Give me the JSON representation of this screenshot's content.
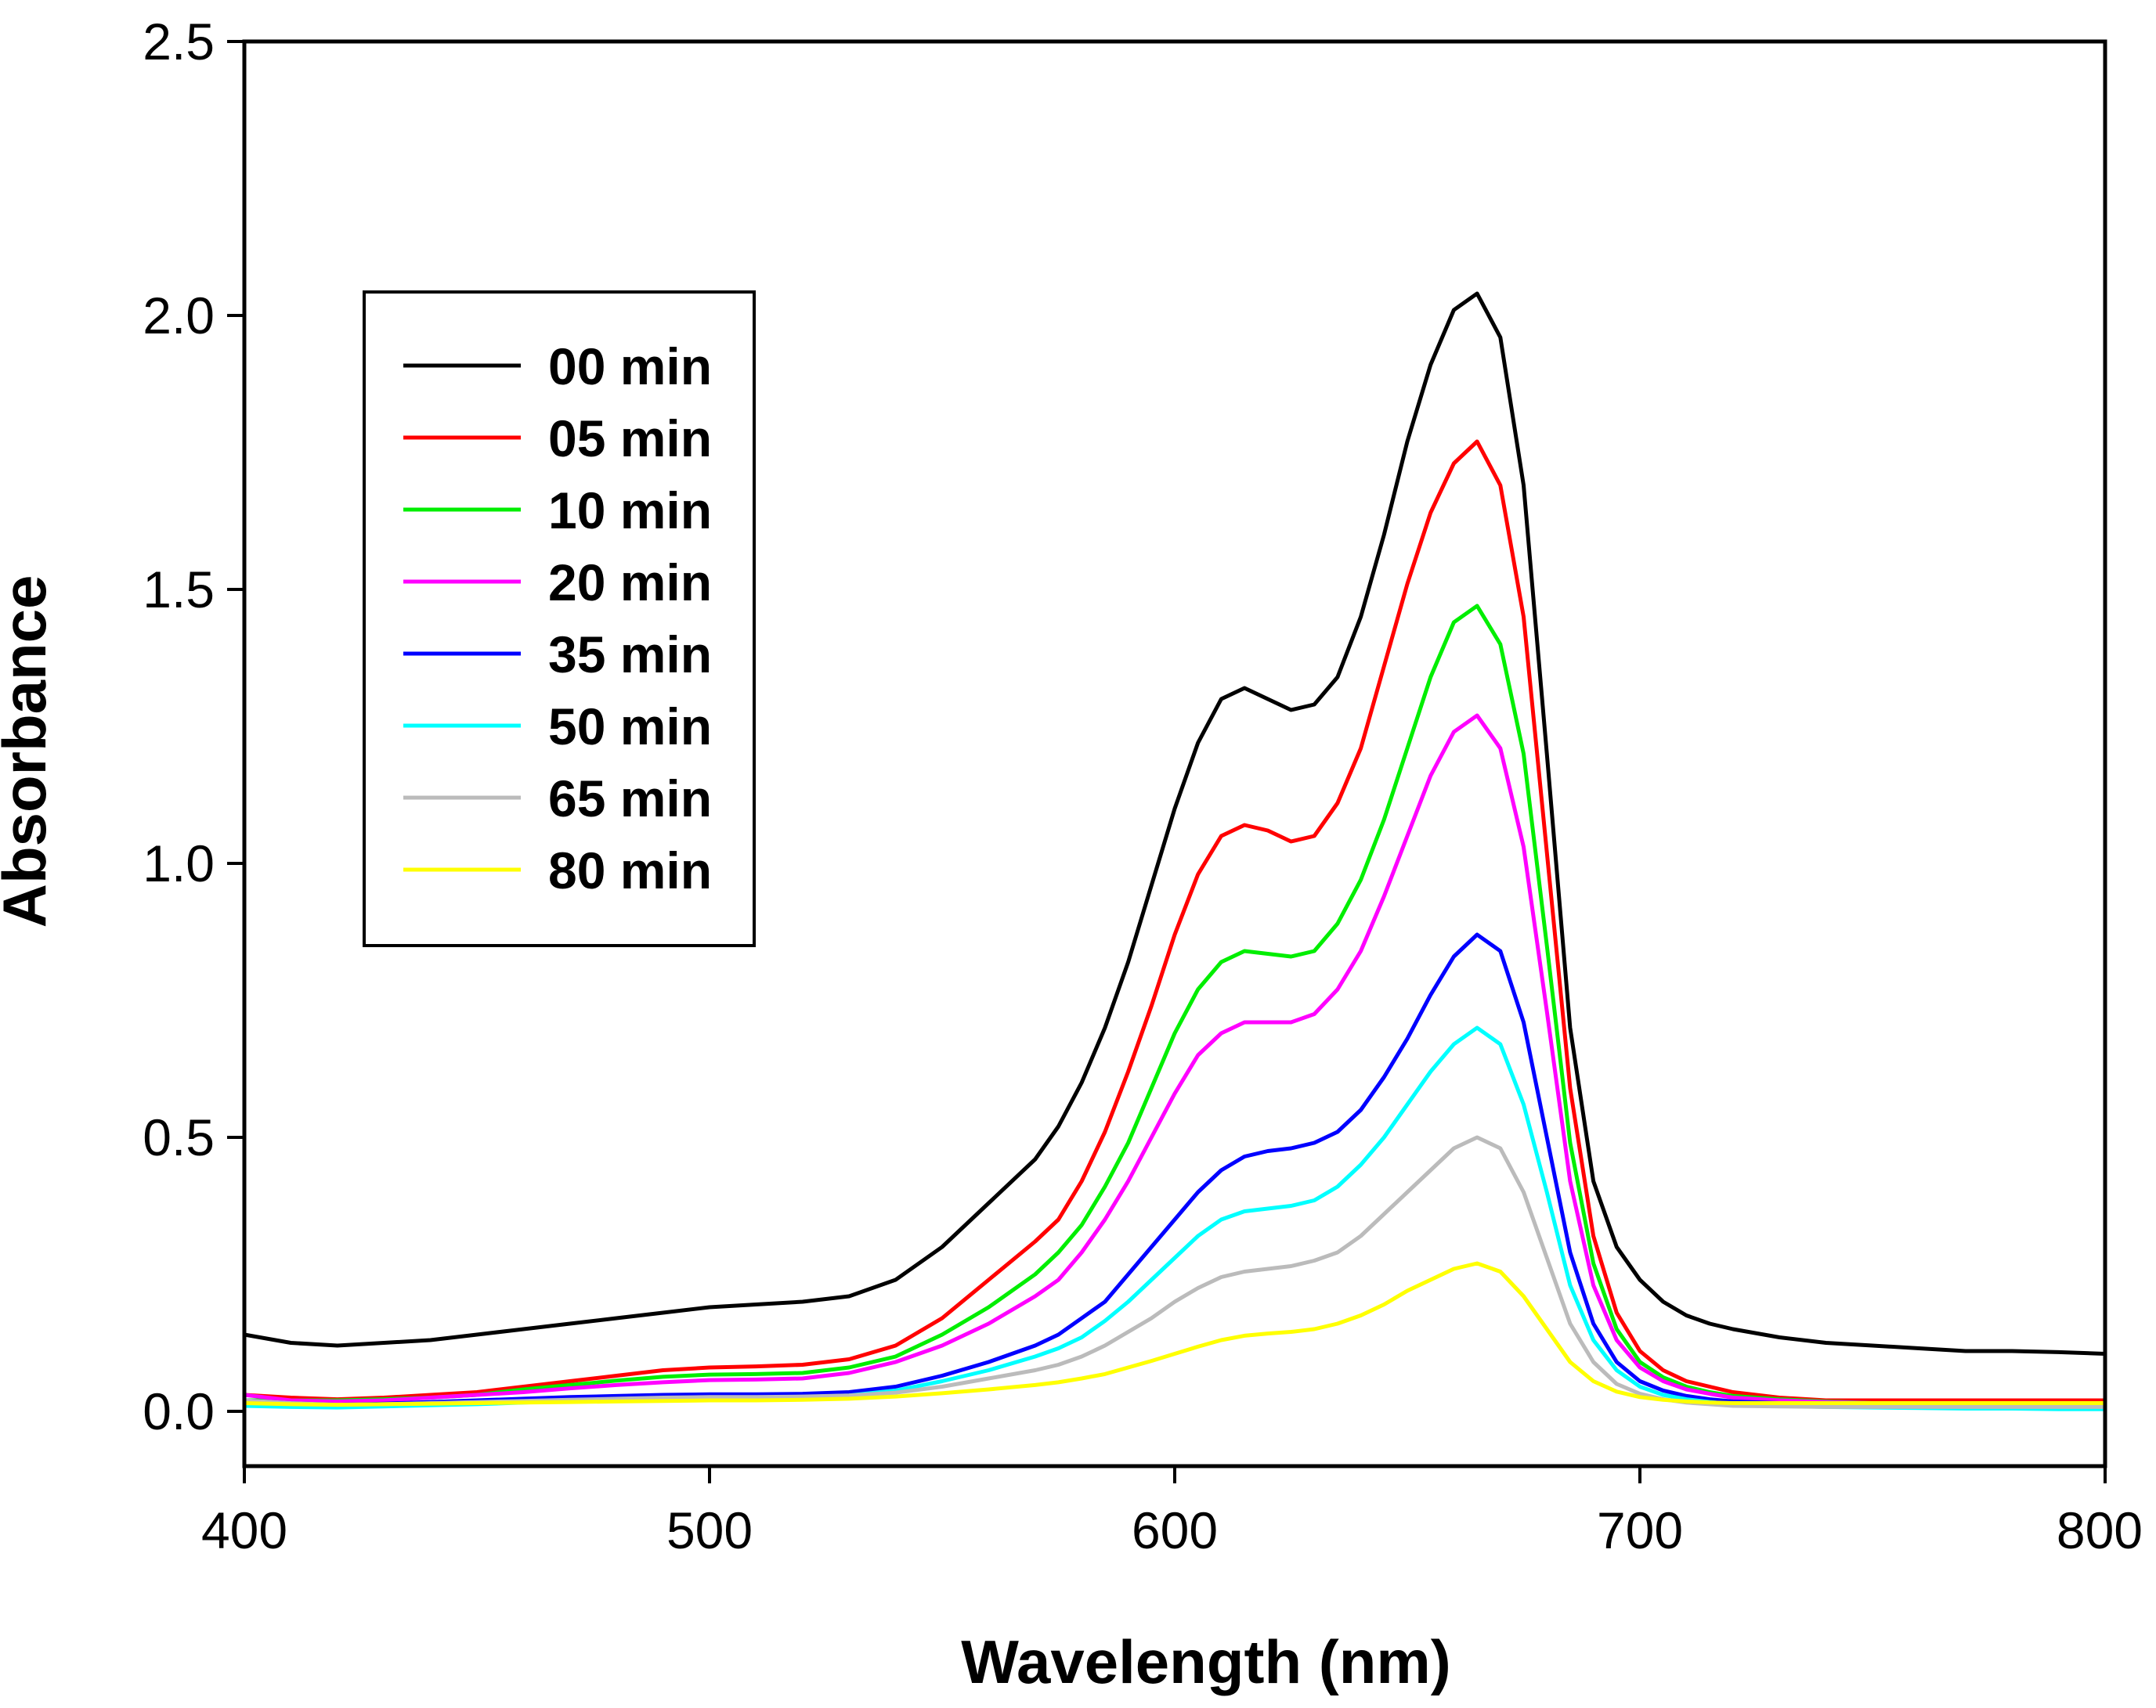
{
  "chart_data": {
    "type": "line",
    "title": "",
    "xlabel": "Wavelength (nm)",
    "ylabel": "Absorbance",
    "xlim": [
      400,
      800
    ],
    "ylim": [
      -0.1,
      2.5
    ],
    "xticks": [
      400,
      500,
      600,
      700,
      800
    ],
    "xtick_labels": [
      "400",
      "500",
      "600",
      "700",
      "800"
    ],
    "yticks": [
      0.0,
      0.5,
      1.0,
      1.5,
      2.0,
      2.5
    ],
    "ytick_labels": [
      "0.0",
      "0.5",
      "1.0",
      "1.5",
      "2.0",
      "2.5"
    ],
    "grid": false,
    "legend_position": "upper-left",
    "x": [
      400,
      410,
      420,
      430,
      440,
      450,
      460,
      470,
      480,
      490,
      500,
      510,
      520,
      530,
      540,
      550,
      560,
      570,
      575,
      580,
      585,
      590,
      595,
      600,
      605,
      610,
      615,
      620,
      625,
      630,
      635,
      640,
      645,
      650,
      655,
      660,
      665,
      670,
      675,
      680,
      685,
      690,
      695,
      700,
      705,
      710,
      715,
      720,
      730,
      740,
      750,
      760,
      770,
      780,
      790,
      800
    ],
    "series": [
      {
        "name": "00 min",
        "color": "#000000",
        "values": [
          0.14,
          0.125,
          0.12,
          0.125,
          0.13,
          0.14,
          0.15,
          0.16,
          0.17,
          0.18,
          0.19,
          0.195,
          0.2,
          0.21,
          0.24,
          0.3,
          0.38,
          0.46,
          0.52,
          0.6,
          0.7,
          0.82,
          0.96,
          1.1,
          1.22,
          1.3,
          1.32,
          1.3,
          1.28,
          1.29,
          1.34,
          1.45,
          1.6,
          1.77,
          1.91,
          2.01,
          2.04,
          1.96,
          1.69,
          1.2,
          0.7,
          0.42,
          0.3,
          0.24,
          0.2,
          0.175,
          0.16,
          0.15,
          0.135,
          0.125,
          0.12,
          0.115,
          0.11,
          0.11,
          0.108,
          0.105
        ]
      },
      {
        "name": "05 min",
        "color": "#ff0000",
        "values": [
          0.03,
          0.025,
          0.022,
          0.025,
          0.03,
          0.035,
          0.045,
          0.055,
          0.065,
          0.075,
          0.08,
          0.082,
          0.085,
          0.095,
          0.12,
          0.17,
          0.24,
          0.31,
          0.35,
          0.42,
          0.51,
          0.62,
          0.74,
          0.87,
          0.98,
          1.05,
          1.07,
          1.06,
          1.04,
          1.05,
          1.11,
          1.21,
          1.36,
          1.51,
          1.64,
          1.73,
          1.77,
          1.69,
          1.45,
          1.02,
          0.59,
          0.32,
          0.18,
          0.11,
          0.075,
          0.055,
          0.045,
          0.035,
          0.025,
          0.02,
          0.02,
          0.02,
          0.02,
          0.02,
          0.02,
          0.02
        ]
      },
      {
        "name": "10 min",
        "color": "#00ee00",
        "values": [
          0.02,
          0.02,
          0.02,
          0.022,
          0.025,
          0.03,
          0.04,
          0.048,
          0.056,
          0.063,
          0.067,
          0.068,
          0.07,
          0.08,
          0.1,
          0.14,
          0.19,
          0.25,
          0.29,
          0.34,
          0.41,
          0.49,
          0.59,
          0.69,
          0.77,
          0.82,
          0.84,
          0.835,
          0.83,
          0.84,
          0.89,
          0.97,
          1.08,
          1.21,
          1.34,
          1.44,
          1.47,
          1.4,
          1.2,
          0.85,
          0.49,
          0.27,
          0.15,
          0.09,
          0.062,
          0.045,
          0.035,
          0.028,
          0.022,
          0.018,
          0.015,
          0.015,
          0.015,
          0.015,
          0.015,
          0.015
        ]
      },
      {
        "name": "20 min",
        "color": "#ff00ff",
        "values": [
          0.03,
          0.02,
          0.018,
          0.02,
          0.025,
          0.03,
          0.035,
          0.042,
          0.048,
          0.053,
          0.057,
          0.058,
          0.06,
          0.07,
          0.09,
          0.12,
          0.16,
          0.21,
          0.24,
          0.29,
          0.35,
          0.42,
          0.5,
          0.58,
          0.65,
          0.69,
          0.71,
          0.71,
          0.71,
          0.725,
          0.77,
          0.84,
          0.94,
          1.05,
          1.16,
          1.24,
          1.27,
          1.21,
          1.03,
          0.73,
          0.42,
          0.23,
          0.13,
          0.08,
          0.055,
          0.04,
          0.032,
          0.025,
          0.02,
          0.017,
          0.015,
          0.015,
          0.015,
          0.015,
          0.015,
          0.015
        ]
      },
      {
        "name": "35 min",
        "color": "#0000ff",
        "values": [
          0.02,
          0.015,
          0.012,
          0.014,
          0.017,
          0.02,
          0.023,
          0.026,
          0.028,
          0.03,
          0.031,
          0.031,
          0.032,
          0.035,
          0.045,
          0.065,
          0.09,
          0.12,
          0.14,
          0.17,
          0.2,
          0.25,
          0.3,
          0.35,
          0.4,
          0.44,
          0.465,
          0.475,
          0.48,
          0.49,
          0.51,
          0.55,
          0.61,
          0.68,
          0.76,
          0.83,
          0.87,
          0.84,
          0.71,
          0.5,
          0.29,
          0.16,
          0.09,
          0.055,
          0.038,
          0.028,
          0.022,
          0.018,
          0.015,
          0.012,
          0.01,
          0.01,
          0.01,
          0.01,
          0.01,
          0.01
        ]
      },
      {
        "name": "50 min",
        "color": "#00ffff",
        "values": [
          0.01,
          0.008,
          0.007,
          0.009,
          0.011,
          0.013,
          0.016,
          0.019,
          0.021,
          0.023,
          0.024,
          0.025,
          0.026,
          0.029,
          0.038,
          0.055,
          0.075,
          0.1,
          0.115,
          0.135,
          0.165,
          0.2,
          0.24,
          0.28,
          0.32,
          0.35,
          0.365,
          0.37,
          0.375,
          0.385,
          0.41,
          0.45,
          0.5,
          0.56,
          0.62,
          0.67,
          0.7,
          0.67,
          0.56,
          0.4,
          0.23,
          0.13,
          0.075,
          0.045,
          0.03,
          0.022,
          0.017,
          0.013,
          0.01,
          0.008,
          0.007,
          0.006,
          0.005,
          0.005,
          0.004,
          0.004
        ]
      },
      {
        "name": "65 min",
        "color": "#bbbbbb",
        "values": [
          0.02,
          0.015,
          0.012,
          0.013,
          0.015,
          0.017,
          0.019,
          0.021,
          0.023,
          0.025,
          0.026,
          0.026,
          0.027,
          0.029,
          0.034,
          0.045,
          0.06,
          0.075,
          0.085,
          0.1,
          0.12,
          0.145,
          0.17,
          0.2,
          0.225,
          0.245,
          0.255,
          0.26,
          0.265,
          0.275,
          0.29,
          0.32,
          0.36,
          0.4,
          0.44,
          0.48,
          0.5,
          0.48,
          0.4,
          0.28,
          0.16,
          0.09,
          0.05,
          0.032,
          0.022,
          0.016,
          0.013,
          0.01,
          0.009,
          0.008,
          0.008,
          0.008,
          0.008,
          0.008,
          0.008,
          0.008
        ]
      },
      {
        "name": "80 min",
        "color": "#ffff00",
        "values": [
          0.015,
          0.013,
          0.012,
          0.013,
          0.014,
          0.015,
          0.016,
          0.017,
          0.018,
          0.019,
          0.02,
          0.02,
          0.021,
          0.023,
          0.027,
          0.033,
          0.04,
          0.048,
          0.053,
          0.06,
          0.068,
          0.08,
          0.092,
          0.105,
          0.118,
          0.13,
          0.138,
          0.142,
          0.145,
          0.15,
          0.16,
          0.175,
          0.195,
          0.22,
          0.24,
          0.26,
          0.27,
          0.255,
          0.21,
          0.15,
          0.09,
          0.055,
          0.036,
          0.026,
          0.021,
          0.018,
          0.016,
          0.015,
          0.015,
          0.015,
          0.015,
          0.015,
          0.015,
          0.015,
          0.015,
          0.015
        ]
      }
    ]
  }
}
